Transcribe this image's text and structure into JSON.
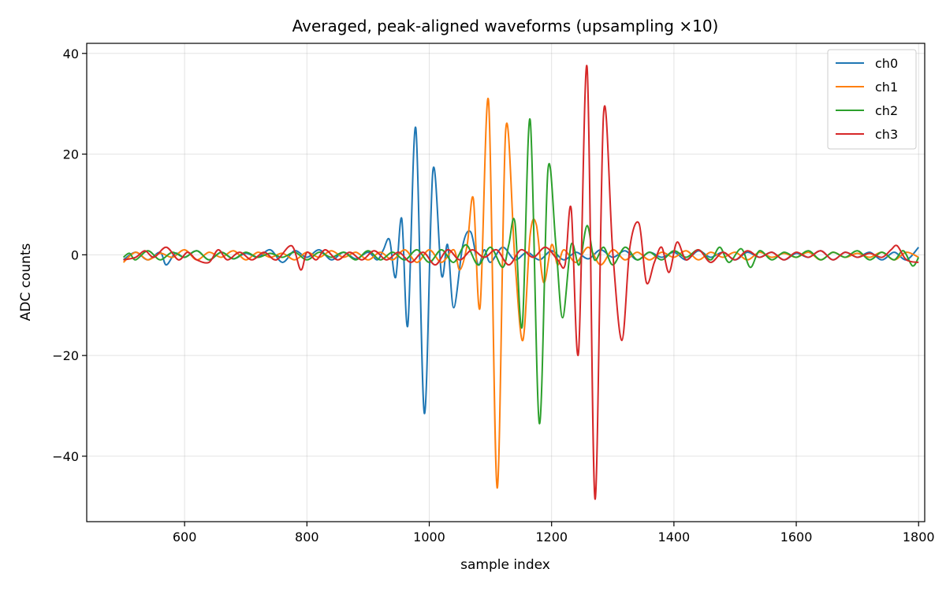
{
  "chart_data": {
    "type": "line",
    "title": "Averaged, peak-aligned waveforms (upsampling ×10)",
    "xlabel": "sample index",
    "ylabel": "ADC counts",
    "xlim": [
      440,
      1810
    ],
    "ylim": [
      -53,
      42
    ],
    "xticks": [
      600,
      800,
      1000,
      1200,
      1400,
      1600,
      1800
    ],
    "xtick_labels": [
      "600",
      "800",
      "1000",
      "1200",
      "1400",
      "1600",
      "1800"
    ],
    "yticks": [
      -40,
      -20,
      0,
      20,
      40
    ],
    "ytick_labels": [
      "−40",
      "−20",
      "0",
      "20",
      "40"
    ],
    "grid": true,
    "legend_position": "top-right",
    "series": [
      {
        "name": "ch0",
        "color": "#1f77b4",
        "points": [
          [
            500,
            -1
          ],
          [
            520,
            0.5
          ],
          [
            540,
            -1
          ],
          [
            560,
            0.5
          ],
          [
            570,
            -2
          ],
          [
            585,
            0.3
          ],
          [
            600,
            -0.5
          ],
          [
            620,
            0.8
          ],
          [
            640,
            -1
          ],
          [
            660,
            0.5
          ],
          [
            680,
            -0.8
          ],
          [
            700,
            0.3
          ],
          [
            720,
            -0.5
          ],
          [
            740,
            1
          ],
          [
            760,
            -1.5
          ],
          [
            780,
            0.8
          ],
          [
            800,
            -0.5
          ],
          [
            820,
            1
          ],
          [
            840,
            -1
          ],
          [
            860,
            0.5
          ],
          [
            880,
            -0.8
          ],
          [
            900,
            0.5
          ],
          [
            915,
            -1
          ],
          [
            925,
            1
          ],
          [
            935,
            3
          ],
          [
            945,
            -4.5
          ],
          [
            955,
            7.2
          ],
          [
            965,
            -14
          ],
          [
            978,
            25.2
          ],
          [
            992,
            -31.5
          ],
          [
            1006,
            16.8
          ],
          [
            1020,
            -4
          ],
          [
            1030,
            2
          ],
          [
            1040,
            -10.5
          ],
          [
            1055,
            2
          ],
          [
            1068,
            4.5
          ],
          [
            1080,
            -2
          ],
          [
            1090,
            1
          ],
          [
            1100,
            -1.5
          ],
          [
            1120,
            1.5
          ],
          [
            1140,
            -1
          ],
          [
            1160,
            0.5
          ],
          [
            1180,
            -1
          ],
          [
            1200,
            0.8
          ],
          [
            1220,
            -1
          ],
          [
            1240,
            0.5
          ],
          [
            1260,
            -0.8
          ],
          [
            1280,
            1
          ],
          [
            1300,
            -0.5
          ],
          [
            1320,
            0.8
          ],
          [
            1340,
            -1
          ],
          [
            1360,
            0.5
          ],
          [
            1380,
            -0.5
          ],
          [
            1400,
            0.5
          ],
          [
            1420,
            -1
          ],
          [
            1440,
            0.8
          ],
          [
            1460,
            -0.5
          ],
          [
            1480,
            0.5
          ],
          [
            1500,
            -1
          ],
          [
            1520,
            0.5
          ],
          [
            1540,
            -0.5
          ],
          [
            1560,
            0.5
          ],
          [
            1580,
            -1
          ],
          [
            1600,
            0.3
          ],
          [
            1620,
            -0.5
          ],
          [
            1640,
            0.8
          ],
          [
            1660,
            -1
          ],
          [
            1680,
            0.5
          ],
          [
            1700,
            -0.5
          ],
          [
            1720,
            0.5
          ],
          [
            1740,
            -1
          ],
          [
            1760,
            0.5
          ],
          [
            1780,
            -1
          ],
          [
            1800,
            1.5
          ]
        ]
      },
      {
        "name": "ch1",
        "color": "#ff7f0e",
        "points": [
          [
            500,
            -1.5
          ],
          [
            520,
            0.5
          ],
          [
            540,
            -1
          ],
          [
            560,
            0.3
          ],
          [
            580,
            -0.5
          ],
          [
            600,
            1
          ],
          [
            620,
            -1
          ],
          [
            640,
            0.5
          ],
          [
            660,
            -0.5
          ],
          [
            680,
            0.8
          ],
          [
            700,
            -1
          ],
          [
            720,
            0.5
          ],
          [
            740,
            -0.5
          ],
          [
            760,
            0.3
          ],
          [
            780,
            -1
          ],
          [
            800,
            0.5
          ],
          [
            820,
            -0.5
          ],
          [
            840,
            0.8
          ],
          [
            860,
            -0.5
          ],
          [
            880,
            0.5
          ],
          [
            900,
            -1
          ],
          [
            920,
            0.5
          ],
          [
            940,
            -1
          ],
          [
            960,
            1
          ],
          [
            980,
            -1.5
          ],
          [
            1000,
            1
          ],
          [
            1020,
            -1.5
          ],
          [
            1040,
            1
          ],
          [
            1050,
            -3
          ],
          [
            1062,
            2
          ],
          [
            1072,
            11.2
          ],
          [
            1083,
            -10.5
          ],
          [
            1097,
            30.5
          ],
          [
            1111,
            -46.3
          ],
          [
            1125,
            24.8
          ],
          [
            1140,
            -1
          ],
          [
            1153,
            -17
          ],
          [
            1165,
            4
          ],
          [
            1175,
            6
          ],
          [
            1187,
            -5.5
          ],
          [
            1200,
            2
          ],
          [
            1210,
            -2
          ],
          [
            1220,
            1
          ],
          [
            1240,
            -1.5
          ],
          [
            1260,
            1.5
          ],
          [
            1280,
            -2
          ],
          [
            1300,
            1
          ],
          [
            1320,
            -1
          ],
          [
            1340,
            0.5
          ],
          [
            1360,
            -1
          ],
          [
            1380,
            0.5
          ],
          [
            1400,
            -0.5
          ],
          [
            1420,
            0.8
          ],
          [
            1440,
            -1
          ],
          [
            1460,
            0.5
          ],
          [
            1480,
            -0.5
          ],
          [
            1500,
            0.5
          ],
          [
            1520,
            -1
          ],
          [
            1540,
            0.5
          ],
          [
            1560,
            -0.5
          ],
          [
            1580,
            0.3
          ],
          [
            1600,
            -0.5
          ],
          [
            1620,
            0.5
          ],
          [
            1640,
            -1
          ],
          [
            1660,
            0.5
          ],
          [
            1680,
            -0.5
          ],
          [
            1700,
            0.3
          ],
          [
            1720,
            -0.5
          ],
          [
            1740,
            0.5
          ],
          [
            1760,
            -1
          ],
          [
            1780,
            0.5
          ],
          [
            1800,
            -0.5
          ]
        ]
      },
      {
        "name": "ch2",
        "color": "#2ca02c",
        "points": [
          [
            500,
            -0.5
          ],
          [
            510,
            0.3
          ],
          [
            520,
            -1
          ],
          [
            540,
            0.8
          ],
          [
            560,
            -1
          ],
          [
            580,
            0.5
          ],
          [
            600,
            -0.5
          ],
          [
            620,
            0.8
          ],
          [
            640,
            -1
          ],
          [
            660,
            0.5
          ],
          [
            680,
            -0.8
          ],
          [
            700,
            0.5
          ],
          [
            720,
            -0.5
          ],
          [
            740,
            0.3
          ],
          [
            760,
            -0.5
          ],
          [
            780,
            0.5
          ],
          [
            800,
            -1
          ],
          [
            820,
            0.5
          ],
          [
            840,
            -0.5
          ],
          [
            860,
            0.5
          ],
          [
            880,
            -1
          ],
          [
            900,
            0.8
          ],
          [
            920,
            -1
          ],
          [
            940,
            0.5
          ],
          [
            960,
            -1
          ],
          [
            980,
            1
          ],
          [
            1000,
            -1.5
          ],
          [
            1020,
            1
          ],
          [
            1040,
            -1.5
          ],
          [
            1060,
            2
          ],
          [
            1080,
            -2
          ],
          [
            1100,
            1.5
          ],
          [
            1120,
            -2.5
          ],
          [
            1130,
            2
          ],
          [
            1140,
            6.5
          ],
          [
            1152,
            -14.2
          ],
          [
            1165,
            26.8
          ],
          [
            1180,
            -33.5
          ],
          [
            1194,
            16.8
          ],
          [
            1207,
            2
          ],
          [
            1218,
            -12.5
          ],
          [
            1232,
            2
          ],
          [
            1245,
            -2
          ],
          [
            1258,
            5.8
          ],
          [
            1270,
            -1
          ],
          [
            1285,
            1.5
          ],
          [
            1300,
            -2
          ],
          [
            1320,
            1.5
          ],
          [
            1340,
            -1
          ],
          [
            1360,
            0.5
          ],
          [
            1380,
            -1
          ],
          [
            1400,
            0.8
          ],
          [
            1420,
            -0.5
          ],
          [
            1440,
            1
          ],
          [
            1460,
            -1
          ],
          [
            1475,
            1.5
          ],
          [
            1490,
            -1.5
          ],
          [
            1510,
            1.2
          ],
          [
            1525,
            -2.5
          ],
          [
            1540,
            0.8
          ],
          [
            1560,
            -1
          ],
          [
            1580,
            0.5
          ],
          [
            1600,
            -0.5
          ],
          [
            1620,
            0.8
          ],
          [
            1640,
            -1
          ],
          [
            1660,
            0.5
          ],
          [
            1680,
            -0.5
          ],
          [
            1700,
            0.8
          ],
          [
            1720,
            -1
          ],
          [
            1740,
            0.5
          ],
          [
            1760,
            -1
          ],
          [
            1775,
            0.8
          ],
          [
            1790,
            -2.2
          ],
          [
            1800,
            -0.5
          ]
        ]
      },
      {
        "name": "ch3",
        "color": "#d62728",
        "points": [
          [
            500,
            -1
          ],
          [
            520,
            -0.5
          ],
          [
            535,
            0.8
          ],
          [
            550,
            -0.5
          ],
          [
            570,
            1.5
          ],
          [
            590,
            -1
          ],
          [
            605,
            0.5
          ],
          [
            620,
            -1
          ],
          [
            640,
            -1.5
          ],
          [
            655,
            1
          ],
          [
            670,
            -1
          ],
          [
            690,
            0.5
          ],
          [
            710,
            -1
          ],
          [
            730,
            0.5
          ],
          [
            750,
            -1
          ],
          [
            775,
            1.8
          ],
          [
            790,
            -3
          ],
          [
            800,
            0.5
          ],
          [
            815,
            -1
          ],
          [
            830,
            1
          ],
          [
            850,
            -1
          ],
          [
            870,
            0.5
          ],
          [
            890,
            -1
          ],
          [
            910,
            0.8
          ],
          [
            930,
            -1
          ],
          [
            950,
            0.5
          ],
          [
            970,
            -1.5
          ],
          [
            990,
            0.5
          ],
          [
            1010,
            -2
          ],
          [
            1030,
            1
          ],
          [
            1050,
            -1
          ],
          [
            1070,
            1
          ],
          [
            1090,
            -0.5
          ],
          [
            1110,
            1
          ],
          [
            1130,
            -2
          ],
          [
            1150,
            1
          ],
          [
            1170,
            -0.5
          ],
          [
            1190,
            1.5
          ],
          [
            1210,
            -1
          ],
          [
            1222,
            -2
          ],
          [
            1232,
            9.2
          ],
          [
            1244,
            -19.5
          ],
          [
            1258,
            37.3
          ],
          [
            1271,
            -48.5
          ],
          [
            1285,
            28.1
          ],
          [
            1300,
            0.5
          ],
          [
            1315,
            -17
          ],
          [
            1328,
            1.5
          ],
          [
            1343,
            6.2
          ],
          [
            1355,
            -5.5
          ],
          [
            1368,
            -1.5
          ],
          [
            1380,
            1.5
          ],
          [
            1392,
            -3.5
          ],
          [
            1405,
            2.5
          ],
          [
            1420,
            -1
          ],
          [
            1440,
            1
          ],
          [
            1460,
            -1.5
          ],
          [
            1480,
            0.5
          ],
          [
            1500,
            -1
          ],
          [
            1520,
            0.8
          ],
          [
            1540,
            -0.5
          ],
          [
            1560,
            0.5
          ],
          [
            1580,
            -1
          ],
          [
            1600,
            0.5
          ],
          [
            1620,
            -0.5
          ],
          [
            1640,
            0.8
          ],
          [
            1660,
            -1
          ],
          [
            1680,
            0.5
          ],
          [
            1700,
            -0.5
          ],
          [
            1720,
            0.3
          ],
          [
            1740,
            -0.5
          ],
          [
            1755,
            1
          ],
          [
            1765,
            1.8
          ],
          [
            1780,
            -1
          ],
          [
            1800,
            -1.5
          ]
        ]
      }
    ]
  }
}
